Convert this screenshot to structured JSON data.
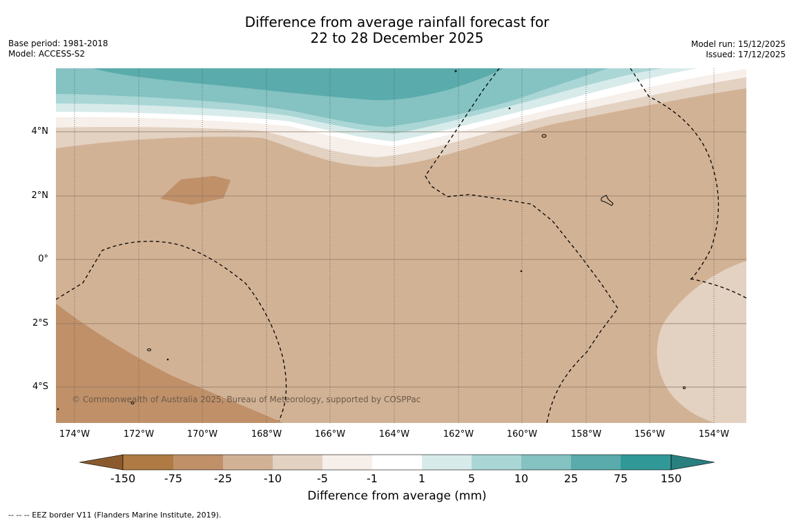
{
  "title": {
    "line1": "Difference from average rainfall forecast for",
    "line2": "22 to 28 December 2025"
  },
  "meta_left": {
    "base_period": "Base period: 1981-2018",
    "model": "Model: ACCESS-S2"
  },
  "meta_right": {
    "model_run": "Model run: 15/12/2025",
    "issued": "Issued: 17/12/2025"
  },
  "map": {
    "latitude_labels": [
      "4°N",
      "2°N",
      "0°",
      "2°S",
      "4°S"
    ],
    "longitude_labels": [
      "174°W",
      "172°W",
      "170°W",
      "168°W",
      "166°W",
      "164°W",
      "162°W",
      "160°W",
      "158°W",
      "156°W",
      "154°W"
    ],
    "copyright": "© Commonwealth of Australia 2025, Bureau of Meteorology, supported by COSPPac"
  },
  "colorbar": {
    "ticks": [
      "-150",
      "-75",
      "-25",
      "-10",
      "-5",
      "-1",
      "1",
      "5",
      "10",
      "25",
      "75",
      "150"
    ],
    "colors": [
      "#8a5a2e",
      "#b07a44",
      "#c09069",
      "#d2b295",
      "#e3d1c1",
      "#f6efea",
      "#ffffff",
      "#d8ebeb",
      "#aad6d6",
      "#85c2c2",
      "#5aabab",
      "#319898",
      "#2a7f7f"
    ],
    "label": "Difference from average (mm)"
  },
  "footnote": "-- -- -- EEZ border V11 (Flanders Marine Institute, 2019)."
}
